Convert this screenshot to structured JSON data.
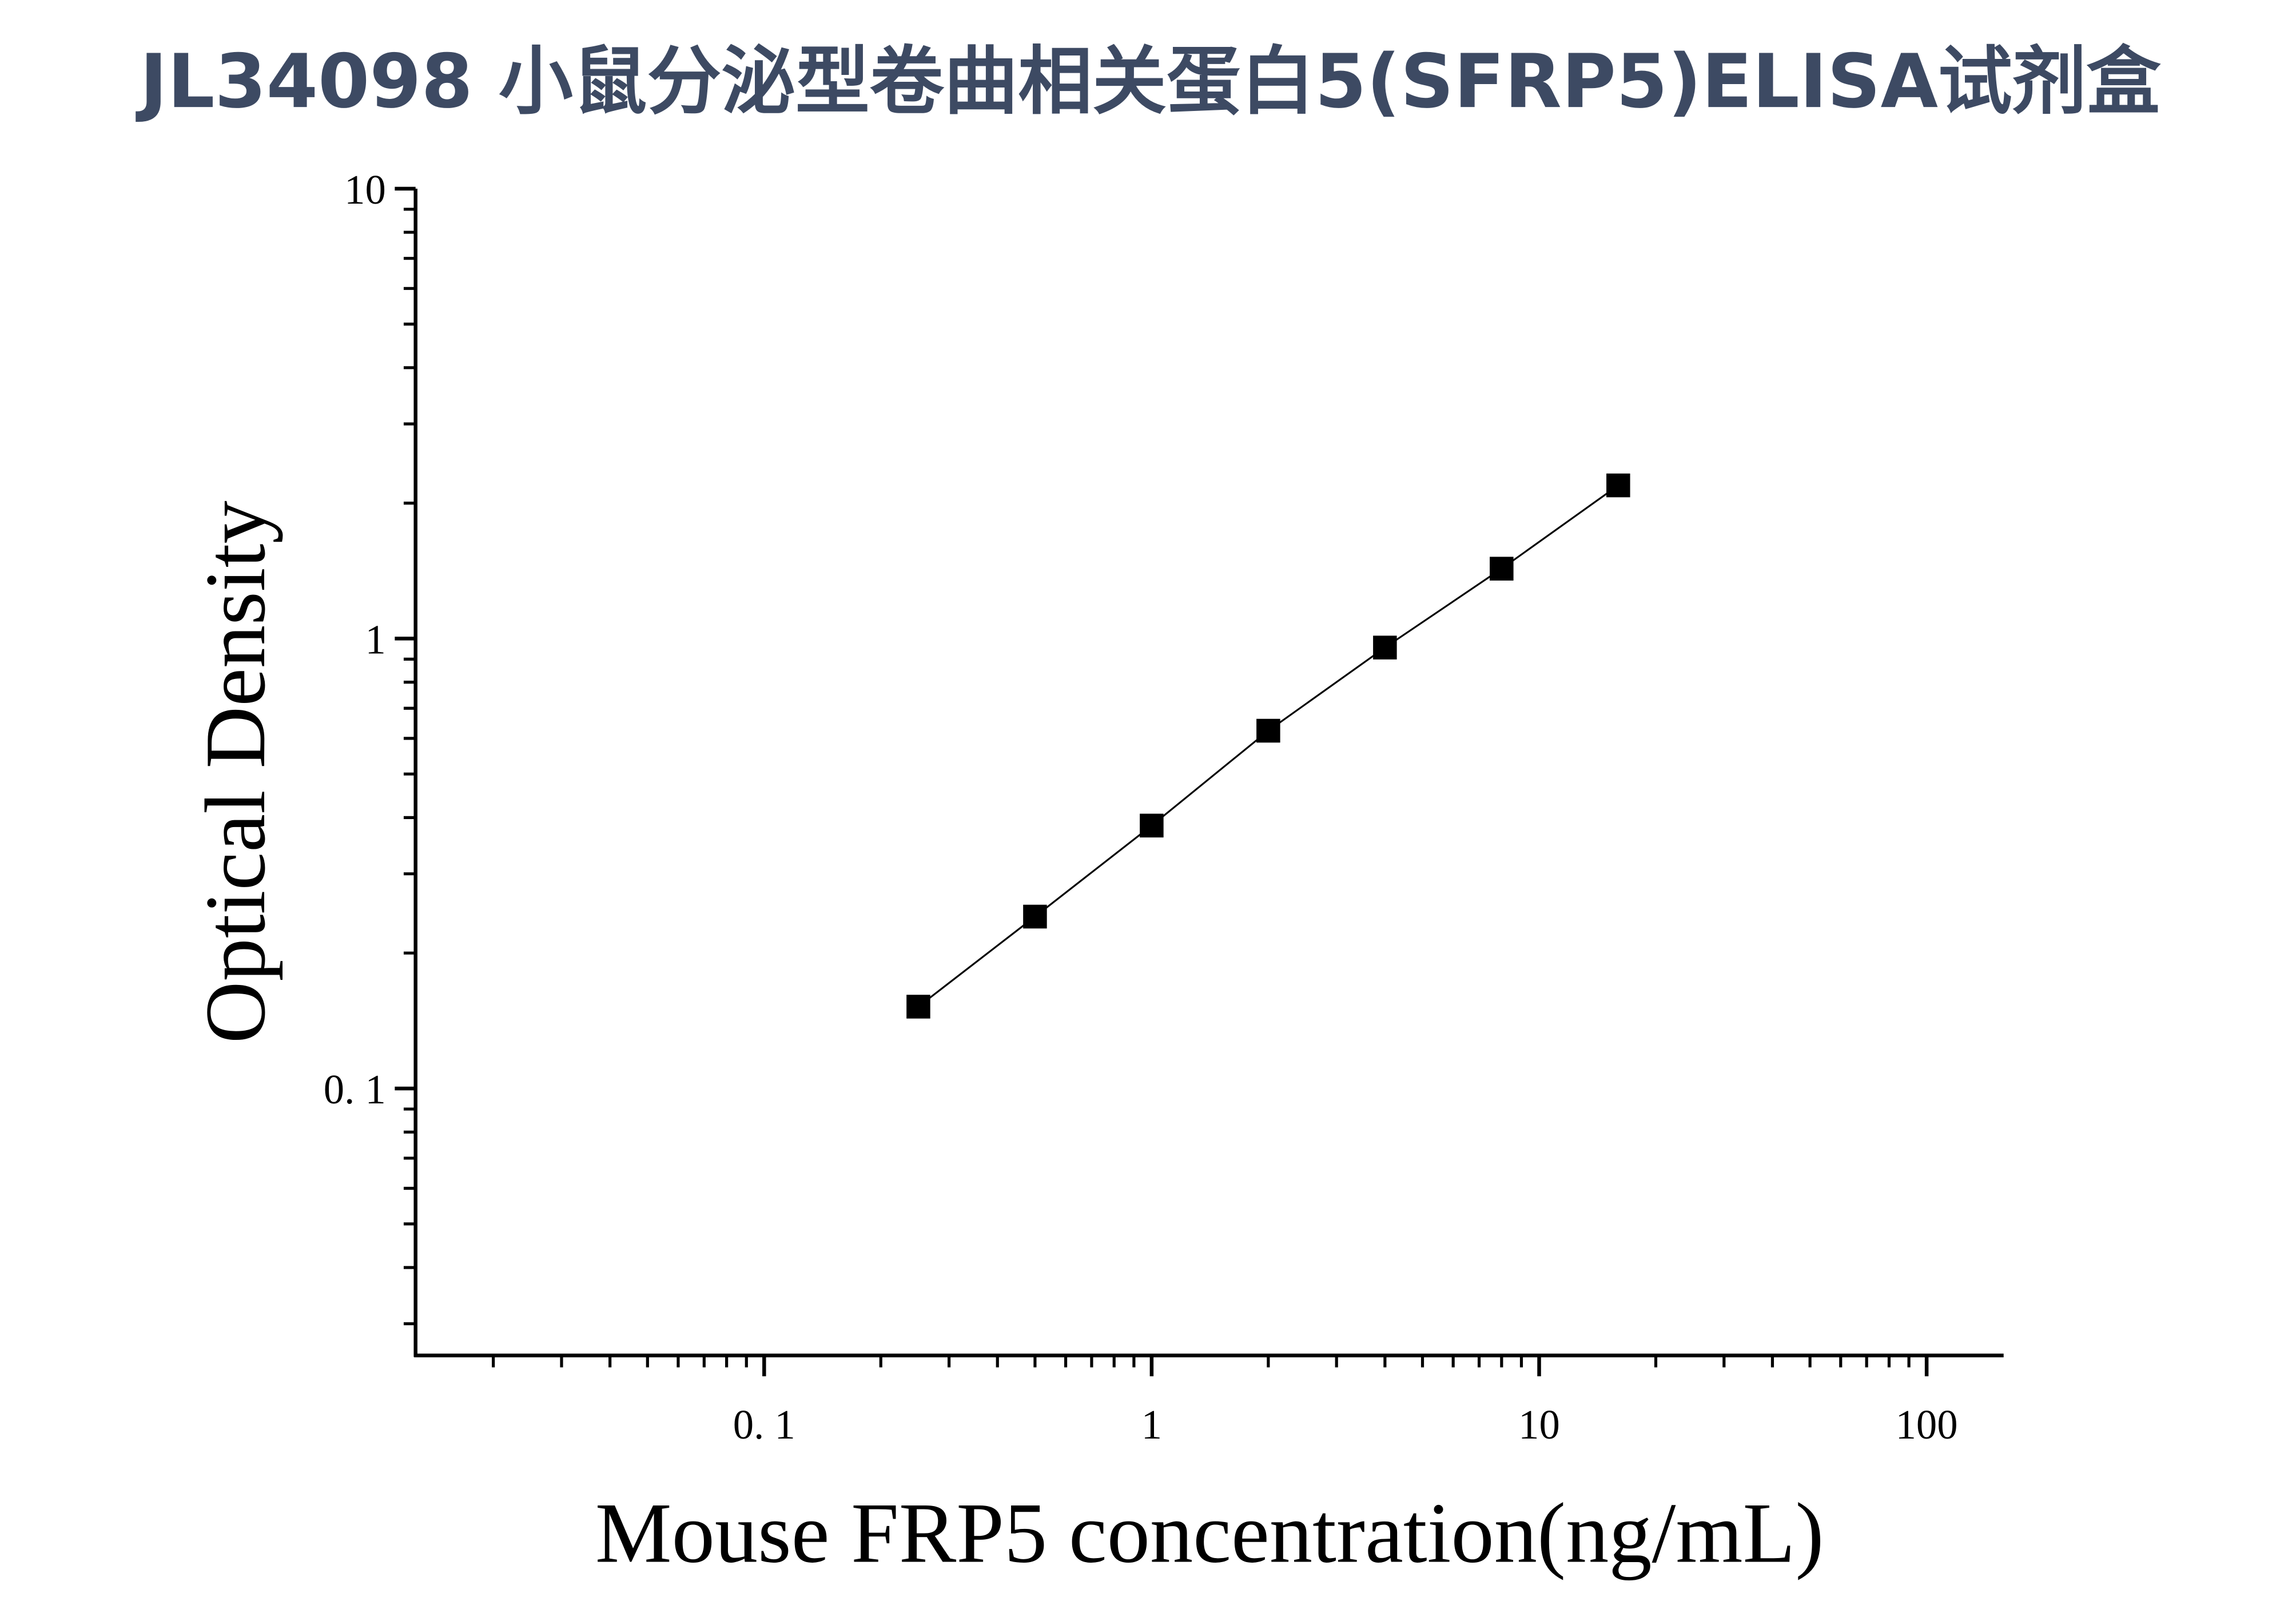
{
  "chart_data": {
    "type": "scatter-line",
    "title": "JL34098 小鼠分泌型卷曲相关蛋白5(SFRP5)ELISA试剂盒",
    "x_label": "Mouse FRP5 concentration(ng/mL)",
    "y_label": "Optical Density",
    "x": [
      0.25,
      0.5,
      1,
      2,
      4,
      8,
      16
    ],
    "series": [
      {
        "color": "#000000",
        "values": [
          0.152,
          0.241,
          0.384,
          0.624,
          0.955,
          1.43,
          2.19
        ]
      }
    ],
    "x_log": true,
    "y_log": true,
    "xlim": [
      0.0126,
      158
    ],
    "ylim": [
      0.0255,
      10
    ],
    "xticks": [
      {
        "value": 0.1,
        "label": "0. 1"
      },
      1,
      10,
      100
    ],
    "yticks": [
      {
        "value": 0.1,
        "label": "0. 1"
      },
      1,
      10
    ],
    "minor_ticks": true,
    "grid": false
  }
}
